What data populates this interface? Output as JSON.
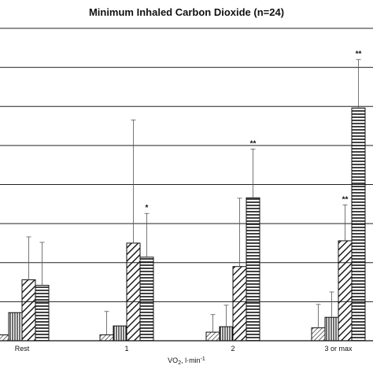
{
  "chart_data": {
    "type": "bar",
    "title": "Minimum Inhaled Carbon Dioxide (n=24)",
    "xlabel": "VO",
    "xlabel_sub": "2",
    "xlabel_unit": ", l·min",
    "xlabel_sup": "-1",
    "ylabel": "",
    "ylim": [
      0,
      8
    ],
    "grid": true,
    "categories": [
      "Rest",
      "1",
      "2",
      "3 or max"
    ],
    "series": [
      {
        "pattern": "diagonal-hatch-fine",
        "values": [
          0.15,
          0.15,
          0.22,
          0.33
        ],
        "errors": [
          0.0,
          0.6,
          0.45,
          0.6
        ]
      },
      {
        "pattern": "vertical-lines",
        "values": [
          0.72,
          0.38,
          0.36,
          0.6
        ],
        "errors": [
          0.0,
          0.0,
          0.55,
          0.65
        ]
      },
      {
        "pattern": "diagonal-hatch-bold",
        "values": [
          1.56,
          2.5,
          1.9,
          2.56
        ],
        "errors": [
          1.1,
          3.15,
          1.75,
          0.92
        ]
      },
      {
        "pattern": "horizontal-lines",
        "values": [
          1.42,
          2.14,
          3.66,
          5.96
        ],
        "errors": [
          1.1,
          1.12,
          1.25,
          1.24
        ]
      }
    ],
    "significance": [
      {
        "category": "1",
        "series": 3,
        "label": "*"
      },
      {
        "category": "2",
        "series": 3,
        "label": "**"
      },
      {
        "category": "3 or max",
        "series": 2,
        "label": "**"
      },
      {
        "category": "3 or max",
        "series": 3,
        "label": "**"
      }
    ]
  }
}
